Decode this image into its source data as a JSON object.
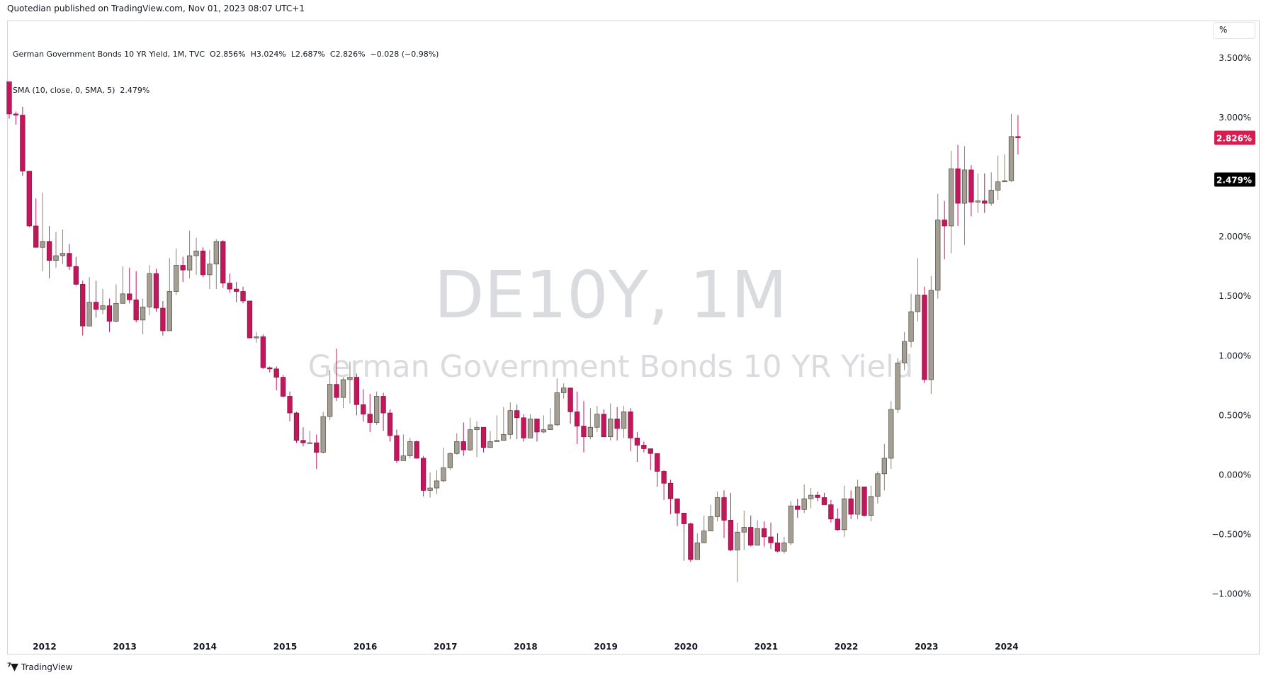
{
  "header": {
    "caption": "Quotedian published on TradingView.com, Nov 01, 2023 08:07 UTC+1"
  },
  "legend": {
    "line1": "German Government Bonds 10 YR Yield, 1M, TVC  O2.856%  H3.024%  L2.687%  C2.826%  −0.028 (−0.98%)",
    "line2": "SMA (10, close, 0, SMA, 5)  2.479%"
  },
  "toolbar": {
    "unit_label": "%"
  },
  "watermark": {
    "symbol": "DE10Y, 1M",
    "name": "German Government Bonds 10 YR Yield"
  },
  "footer": {
    "logo_icon": "tradingview-logo-icon",
    "brand": "TradingView"
  },
  "colors": {
    "up": "#a59e93",
    "down": "#c2185b",
    "wick": "#c2185b",
    "last_price_bg": "#d81b50",
    "sma_bg": "#000000"
  },
  "price_labels": {
    "last": "2.826%",
    "sma": "2.479%"
  },
  "chart_data": {
    "type": "candlestick",
    "interval": "1M",
    "start": "2011-06",
    "y_axis": {
      "ticks": [
        3.5,
        3.0,
        2.5,
        2.0,
        1.5,
        1.0,
        0.5,
        0.0,
        -0.5,
        -1.0
      ],
      "tick_labels": [
        "3.500%",
        "3.000%",
        "2.500%",
        "2.000%",
        "1.500%",
        "1.000%",
        "0.500%",
        "0.000%",
        "−0.500%",
        "−1.000%"
      ]
    },
    "x_axis": {
      "tick_labels": [
        "2012",
        "2013",
        "2014",
        "2015",
        "2016",
        "2017",
        "2018",
        "2019",
        "2020",
        "2021",
        "2022",
        "2023",
        "2024"
      ]
    },
    "close": [
      3.03,
      3.02,
      2.55,
      2.09,
      1.91,
      1.96,
      1.8,
      1.84,
      1.86,
      1.75,
      1.6,
      1.25,
      1.45,
      1.39,
      1.42,
      1.29,
      1.44,
      1.52,
      1.47,
      1.3,
      1.41,
      1.69,
      1.4,
      1.21,
      1.54,
      1.76,
      1.72,
      1.84,
      1.88,
      1.68,
      1.77,
      1.96,
      1.61,
      1.56,
      1.54,
      1.46,
      1.15,
      1.16,
      0.9,
      0.89,
      0.82,
      0.66,
      0.52,
      0.29,
      0.27,
      0.27,
      0.19,
      0.49,
      0.76,
      0.65,
      0.8,
      0.82,
      0.59,
      0.51,
      0.44,
      0.66,
      0.52,
      0.33,
      0.12,
      0.16,
      0.28,
      0.14,
      -0.13,
      -0.11,
      -0.05,
      0.06,
      0.18,
      0.28,
      0.21,
      0.38,
      0.4,
      0.23,
      0.28,
      0.29,
      0.34,
      0.54,
      0.48,
      0.31,
      0.47,
      0.36,
      0.38,
      0.42,
      0.69,
      0.73,
      0.53,
      0.41,
      0.32,
      0.4,
      0.51,
      0.32,
      0.47,
      0.39,
      0.53,
      0.31,
      0.25,
      0.22,
      0.18,
      0.03,
      -0.07,
      -0.2,
      -0.32,
      -0.41,
      -0.71,
      -0.57,
      -0.47,
      -0.35,
      -0.19,
      -0.38,
      -0.63,
      -0.48,
      -0.44,
      -0.59,
      -0.45,
      -0.52,
      -0.57,
      -0.64,
      -0.57,
      -0.26,
      -0.29,
      -0.2,
      -0.17,
      -0.19,
      -0.25,
      -0.37,
      -0.46,
      -0.2,
      -0.33,
      -0.1,
      -0.34,
      -0.18,
      0.01,
      0.14,
      0.55,
      0.94,
      1.12,
      1.37,
      1.51,
      0.8,
      1.55,
      2.14,
      2.09,
      2.57,
      2.28,
      2.56,
      2.29,
      2.3,
      2.28,
      2.39,
      2.46,
      2.47,
      2.84,
      2.83
    ],
    "high": [
      3.3,
      3.05,
      3.09,
      2.55,
      2.32,
      2.37,
      2.09,
      2.04,
      2.06,
      1.94,
      1.83,
      1.63,
      1.66,
      1.63,
      1.56,
      1.48,
      1.6,
      1.75,
      1.74,
      1.71,
      1.48,
      1.76,
      1.73,
      1.46,
      1.82,
      1.9,
      1.83,
      2.05,
      1.99,
      1.91,
      1.89,
      1.98,
      1.97,
      1.69,
      1.62,
      1.58,
      1.2,
      1.2,
      1.18,
      0.91,
      0.91,
      0.84,
      0.7,
      0.53,
      0.4,
      0.37,
      0.34,
      0.53,
      0.88,
      1.06,
      0.82,
      0.95,
      0.85,
      0.72,
      0.68,
      0.7,
      0.69,
      0.55,
      0.38,
      0.34,
      0.31,
      0.29,
      0.16,
      0.02,
      0.04,
      0.23,
      0.19,
      0.35,
      0.44,
      0.48,
      0.45,
      0.37,
      0.37,
      0.5,
      0.57,
      0.61,
      0.59,
      0.51,
      0.51,
      0.47,
      0.5,
      0.56,
      0.81,
      0.77,
      0.73,
      0.7,
      0.62,
      0.56,
      0.58,
      0.55,
      0.6,
      0.57,
      0.58,
      0.56,
      0.36,
      0.28,
      0.22,
      0.13,
      0.04,
      -0.04,
      -0.2,
      -0.39,
      -0.4,
      -0.49,
      -0.34,
      -0.25,
      -0.14,
      -0.13,
      -0.15,
      -0.4,
      -0.3,
      -0.34,
      -0.38,
      -0.39,
      -0.4,
      -0.49,
      -0.52,
      -0.22,
      -0.2,
      -0.08,
      -0.11,
      -0.14,
      -0.15,
      -0.21,
      -0.28,
      -0.09,
      -0.13,
      -0.04,
      -0.27,
      -0.09,
      0.03,
      0.26,
      0.62,
      0.98,
      1.2,
      1.52,
      1.82,
      1.58,
      1.67,
      2.36,
      2.3,
      2.72,
      2.77,
      2.76,
      2.6,
      2.53,
      2.53,
      2.54,
      2.68,
      2.69,
      3.03,
      3.02
    ],
    "low": [
      2.99,
      2.94,
      2.51,
      2.08,
      1.91,
      1.71,
      1.65,
      1.74,
      1.77,
      1.72,
      1.59,
      1.17,
      1.25,
      1.32,
      1.35,
      1.2,
      1.28,
      1.44,
      1.44,
      1.28,
      1.18,
      1.34,
      1.37,
      1.17,
      1.21,
      1.51,
      1.62,
      1.65,
      1.68,
      1.66,
      1.56,
      1.56,
      1.57,
      1.53,
      1.45,
      1.44,
      1.15,
      1.11,
      0.89,
      0.86,
      0.71,
      0.65,
      0.45,
      0.27,
      0.24,
      0.26,
      0.05,
      0.18,
      0.46,
      0.62,
      0.56,
      0.6,
      0.5,
      0.45,
      0.36,
      0.42,
      0.37,
      0.28,
      0.1,
      0.12,
      0.14,
      0.14,
      -0.18,
      -0.19,
      -0.16,
      -0.06,
      0.04,
      0.17,
      0.16,
      0.2,
      0.15,
      0.19,
      0.24,
      0.28,
      0.29,
      0.3,
      0.3,
      0.28,
      0.31,
      0.28,
      0.35,
      0.38,
      0.41,
      0.64,
      0.43,
      0.26,
      0.19,
      0.3,
      0.36,
      0.33,
      0.29,
      0.29,
      0.31,
      0.2,
      0.11,
      0.19,
      0.04,
      -0.1,
      -0.21,
      -0.33,
      -0.43,
      -0.72,
      -0.73,
      -0.58,
      -0.48,
      -0.44,
      -0.39,
      -0.53,
      -0.64,
      -0.9,
      -0.63,
      -0.6,
      -0.49,
      -0.6,
      -0.62,
      -0.65,
      -0.66,
      -0.59,
      -0.36,
      -0.32,
      -0.28,
      -0.22,
      -0.24,
      -0.4,
      -0.47,
      -0.52,
      -0.37,
      -0.37,
      -0.35,
      -0.39,
      -0.24,
      -0.13,
      0.05,
      0.52,
      0.88,
      1.07,
      1.29,
      0.77,
      0.68,
      1.48,
      1.81,
      1.86,
      2.09,
      1.93,
      2.17,
      2.2,
      2.2,
      2.26,
      2.31,
      2.47,
      2.46,
      2.69
    ]
  }
}
